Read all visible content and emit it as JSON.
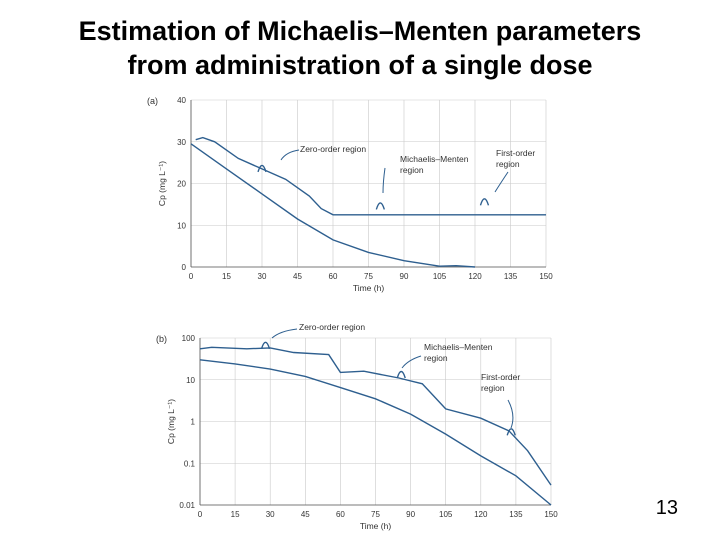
{
  "title": {
    "line1": "Estimation of Michaelis–Menten parameters",
    "line2": "from administration of a single dose"
  },
  "page_number": "13",
  "colors": {
    "curve": "#2e5f8f",
    "grid": "#c9c9c9",
    "text": "#333333"
  },
  "chart_data": [
    {
      "panel": "(a)",
      "type": "line",
      "xlabel": "Time (h)",
      "ylabel": "Cp (mg L⁻¹)",
      "xlim": [
        0,
        150
      ],
      "ylim": [
        0,
        40
      ],
      "xticks": [
        0,
        15,
        30,
        45,
        60,
        75,
        90,
        105,
        120,
        135,
        150
      ],
      "yticks": [
        0,
        10,
        20,
        30,
        40
      ],
      "grid": true,
      "series": [
        {
          "x": [
            0,
            15,
            30,
            45,
            60,
            75,
            90,
            105,
            112,
            120
          ],
          "y": [
            29.5,
            23.5,
            17.5,
            11.5,
            6.5,
            3.5,
            1.5,
            0.2,
            0.3,
            0
          ]
        },
        {
          "x": [
            2,
            5,
            10,
            20,
            30,
            40,
            50,
            55,
            60,
            150
          ],
          "y": [
            30.5,
            31.0,
            30.0,
            26.0,
            23.5,
            21.0,
            17.0,
            14.0,
            12.5,
            12.5
          ]
        }
      ],
      "annotations": [
        "Zero-order region",
        "Michaelis–Menten region",
        "First-order region"
      ],
      "annotation_markers": [
        {
          "x": 30,
          "y": 23.5
        },
        {
          "x": 80,
          "y": 14.5
        },
        {
          "x": 124,
          "y": 15.5
        }
      ]
    },
    {
      "panel": "(b)",
      "type": "line",
      "xlabel": "Time (h)",
      "ylabel": "Cp (mg L⁻¹)",
      "scale": "log",
      "xlim": [
        0,
        150
      ],
      "ylim": [
        0.01,
        100
      ],
      "xticks": [
        0,
        15,
        30,
        45,
        60,
        75,
        90,
        105,
        120,
        135,
        150
      ],
      "yticks": [
        "0.01",
        "0.1",
        "1",
        "10",
        "100"
      ],
      "grid": true,
      "series": [
        {
          "x": [
            0,
            15,
            30,
            45,
            60,
            75,
            90,
            105,
            120,
            135,
            150
          ],
          "y": [
            30,
            24,
            18,
            12,
            6.5,
            3.5,
            1.5,
            0.5,
            0.15,
            0.05,
            0.01
          ]
        },
        {
          "x": [
            0,
            5,
            20,
            30,
            40,
            55,
            60,
            70,
            85,
            95,
            105,
            120,
            132,
            140,
            150
          ],
          "y": [
            55,
            60,
            55,
            58,
            45,
            40,
            15,
            16,
            11,
            8,
            2,
            1.2,
            0.6,
            0.2,
            0.03
          ]
        }
      ],
      "annotations": [
        "Zero-order region",
        "Michaelis–Menten region",
        "First-order region"
      ],
      "annotation_markers": [
        {
          "x": 28,
          "y": 65
        },
        {
          "x": 86,
          "y": 13
        },
        {
          "x": 133,
          "y": 0.55
        }
      ]
    }
  ]
}
